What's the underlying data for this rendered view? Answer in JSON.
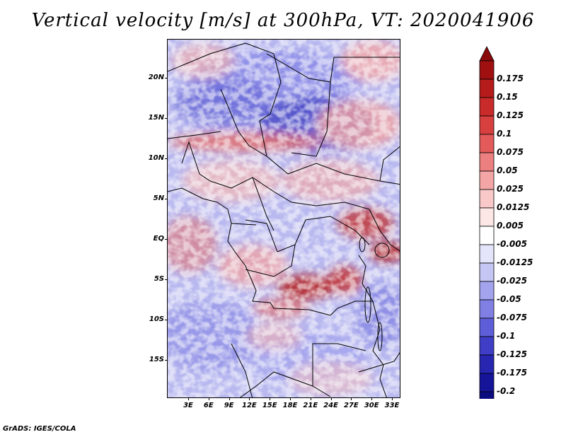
{
  "title": "Vertical velocity [m/s] at 300hPa, VT: 2020041906",
  "footer": "GrADS: IGES/COLA",
  "lat_labels": [
    "20N",
    "15N",
    "10N",
    "5N",
    "EQ",
    "5S",
    "10S",
    "15S"
  ],
  "lon_labels": [
    "3E",
    "6E",
    "9E",
    "12E",
    "15E",
    "18E",
    "21E",
    "24E",
    "27E",
    "30E",
    "33E"
  ],
  "colorbar": {
    "labels": [
      "0.175",
      "0.15",
      "0.125",
      "0.1",
      "0.075",
      "0.05",
      "0.025",
      "0.0125",
      "0.005",
      "-0.005",
      "-0.0125",
      "-0.025",
      "-0.05",
      "-0.075",
      "-0.1",
      "-0.125",
      "-0.175",
      "-0.2"
    ],
    "colors": [
      "#a01010",
      "#b51b1b",
      "#c92a2a",
      "#d84040",
      "#e25a5a",
      "#ec7f7f",
      "#f4a6a6",
      "#f9c8c8",
      "#fce6e6",
      "#ffffff",
      "#e4e4fa",
      "#c6c6f4",
      "#a4a4ee",
      "#8080e4",
      "#5e5ed8",
      "#3e3ec6",
      "#2626b0",
      "#15159a",
      "#0b0b80"
    ],
    "top_arrow_color": "#8a0a0a",
    "bottom_arrow_color": "#1a0a80"
  },
  "palette": {
    "strong_down": "#b01818",
    "down": "#e88080",
    "up": "#7070e0",
    "strong_up": "#2a2ab0"
  }
}
